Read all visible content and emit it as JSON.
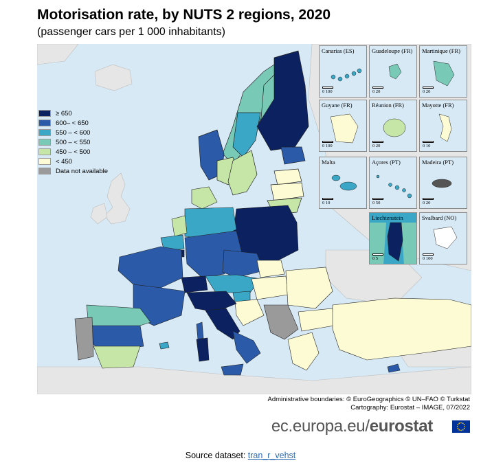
{
  "title": "Motorisation rate, by NUTS 2 regions, 2020",
  "subtitle": "(passenger cars per 1 000 inhabitants)",
  "legend": {
    "items": [
      {
        "label": "≥ 650",
        "color": "#0b2160"
      },
      {
        "label": "600– < 650",
        "color": "#2a5aa8"
      },
      {
        "label": "550 – < 600",
        "color": "#3aa7c6"
      },
      {
        "label": "500 – < 550",
        "color": "#78c9b6"
      },
      {
        "label": "450 – < 500",
        "color": "#c6e6a8"
      },
      {
        "label": "< 450",
        "color": "#fcfbd3"
      },
      {
        "label": "Data not available",
        "color": "#9a9a9a"
      }
    ]
  },
  "insets": [
    {
      "name": "Canarias (ES)",
      "scale": "0 100",
      "fill": "#3aa7c6"
    },
    {
      "name": "Guadeloupe (FR)",
      "scale": "0 20",
      "fill": "#78c9b6"
    },
    {
      "name": "Martinique (FR)",
      "scale": "0 20",
      "fill": "#78c9b6"
    },
    {
      "name": "Guyane (FR)",
      "scale": "0 100",
      "fill": "#fcfbd3"
    },
    {
      "name": "Réunion (FR)",
      "scale": "0 20",
      "fill": "#c6e6a8"
    },
    {
      "name": "Mayotte (FR)",
      "scale": "0 10",
      "fill": "#fcfbd3"
    },
    {
      "name": "Malta",
      "scale": "0 10",
      "fill": "#3aa7c6"
    },
    {
      "name": "Açores (PT)",
      "scale": "0 50",
      "fill": "#3aa7c6"
    },
    {
      "name": "Madeira (PT)",
      "scale": "0 20",
      "fill": "#555555"
    },
    {
      "name": "Liechtenstein",
      "scale": "0 5",
      "fill": "#0b2160"
    },
    {
      "name": "Svalbard (NO)",
      "scale": "0 100",
      "fill": "#ffffff"
    }
  ],
  "credits": {
    "line1": "Administrative boundaries: © EuroGeographics © UN–FAO © Turkstat",
    "line2": "Cartography: Eurostat – IMAGE, 07/2022"
  },
  "website": {
    "prefix": "ec.europa.eu/",
    "brand": "eurostat"
  },
  "source": {
    "label": "Source dataset:",
    "link": "tran_r_vehst"
  },
  "colors": {
    "sea": "#d7e9f5",
    "non_eu_land": "#e6e6e6",
    "border": "#222222"
  }
}
